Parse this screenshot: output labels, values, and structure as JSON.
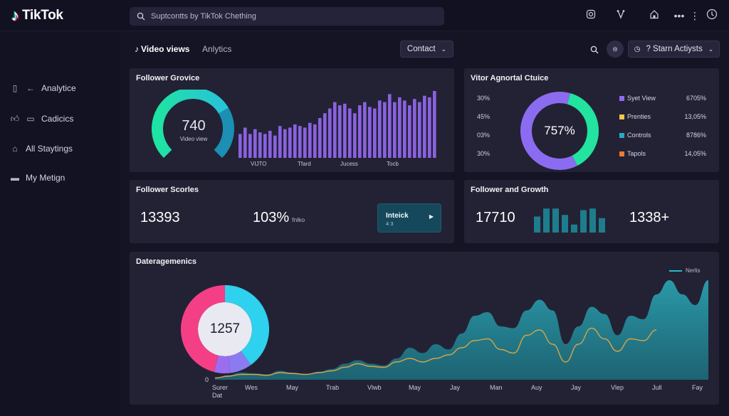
{
  "app": {
    "logo_text": "TikTok"
  },
  "search": {
    "placeholder": "Suptcontts by TikTok Chething"
  },
  "sidebar": {
    "items": [
      {
        "label": "Analytice",
        "icon": "back-arrow-icon"
      },
      {
        "label": "Cadicics",
        "icon": "chat-icon"
      },
      {
        "label": "All Staytings",
        "icon": "home-icon"
      },
      {
        "label": "My Metign",
        "icon": "message-icon"
      }
    ]
  },
  "header": {
    "tab_active": "Video views",
    "tab_other": "Anlytics",
    "contact_label": "Contact",
    "account_label": "? Starn Actiysts"
  },
  "follower_growth": {
    "title": "Follower Grovice",
    "gauge_value": "740",
    "gauge_label": "Video view",
    "gauge_fraction": 0.72,
    "bar_values": [
      30,
      38,
      30,
      36,
      32,
      30,
      34,
      28,
      40,
      36,
      38,
      42,
      40,
      38,
      44,
      42,
      50,
      56,
      62,
      70,
      66,
      68,
      62,
      56,
      66,
      70,
      64,
      62,
      72,
      70,
      80,
      70,
      76,
      72,
      66,
      74,
      70,
      78,
      76,
      84
    ],
    "x_labels": [
      "VIJTO",
      "Tfard",
      "Jucess",
      "Tocb"
    ]
  },
  "visitor": {
    "title": "Vitor Agnortal Ctuice",
    "left_labels": [
      "30%",
      "45%",
      "03%",
      "30%"
    ],
    "donut_value": "757%",
    "donut_slices": [
      {
        "name": "purple",
        "value": 62,
        "color": "#8b6cf0"
      },
      {
        "name": "green",
        "value": 38,
        "color": "#22e3a0"
      }
    ],
    "legend": [
      {
        "label": "Syet View",
        "value": "6705%",
        "color": "#8b6cf0"
      },
      {
        "label": "Prenties",
        "value": "13,05%",
        "color": "#f2c744"
      },
      {
        "label": "Controls",
        "value": "8786%",
        "color": "#28a9c9"
      },
      {
        "label": "Tapols",
        "value": "14,05%",
        "color": "#f07a32"
      }
    ]
  },
  "follower_scores": {
    "title": "Follower Scorles",
    "value1": "13393",
    "value2": "103%",
    "value2_suffix": "fnlko",
    "cta_label": "Inteick",
    "cta_sub": "4 3"
  },
  "follower_and_growth": {
    "title": "Follower and Growth",
    "value1": "17710",
    "value2": "1338+",
    "bar_values": [
      20,
      30,
      30,
      22,
      10,
      28,
      30,
      18
    ]
  },
  "engagement": {
    "title": "Dateragemenics",
    "legend_label": "Nerlis",
    "donut_value": "1257",
    "donut_slices": [
      {
        "name": "cyan",
        "value": 40,
        "color": "#2ed1ee"
      },
      {
        "name": "lightpurple",
        "value": 8,
        "color": "#8a7cf0"
      },
      {
        "name": "purple",
        "value": 6,
        "color": "#9b6df0"
      },
      {
        "name": "pink",
        "value": 46,
        "color": "#f43f86"
      }
    ],
    "y_zero": "0",
    "x_labels": [
      "Surer Dat",
      "Wes",
      "May",
      "Trab",
      "Vlwb",
      "May",
      "Jay",
      "Man",
      "Auy",
      "Jay",
      "Vlep",
      "Jull",
      "Fay"
    ],
    "area_values": [
      2,
      5,
      8,
      7,
      6,
      10,
      8,
      6,
      9,
      12,
      18,
      22,
      18,
      16,
      24,
      36,
      30,
      40,
      34,
      52,
      72,
      76,
      60,
      58,
      78,
      90,
      78,
      40,
      60,
      82,
      74,
      50,
      72,
      68,
      96,
      112,
      96,
      84,
      112
    ],
    "line_values": [
      2,
      4,
      6,
      6,
      5,
      8,
      7,
      6,
      8,
      10,
      14,
      18,
      15,
      14,
      20,
      24,
      20,
      24,
      28,
      36,
      44,
      46,
      34,
      30,
      50,
      56,
      40,
      20,
      40,
      58,
      46,
      32,
      46,
      44,
      56
    ],
    "y_max": 120
  }
}
